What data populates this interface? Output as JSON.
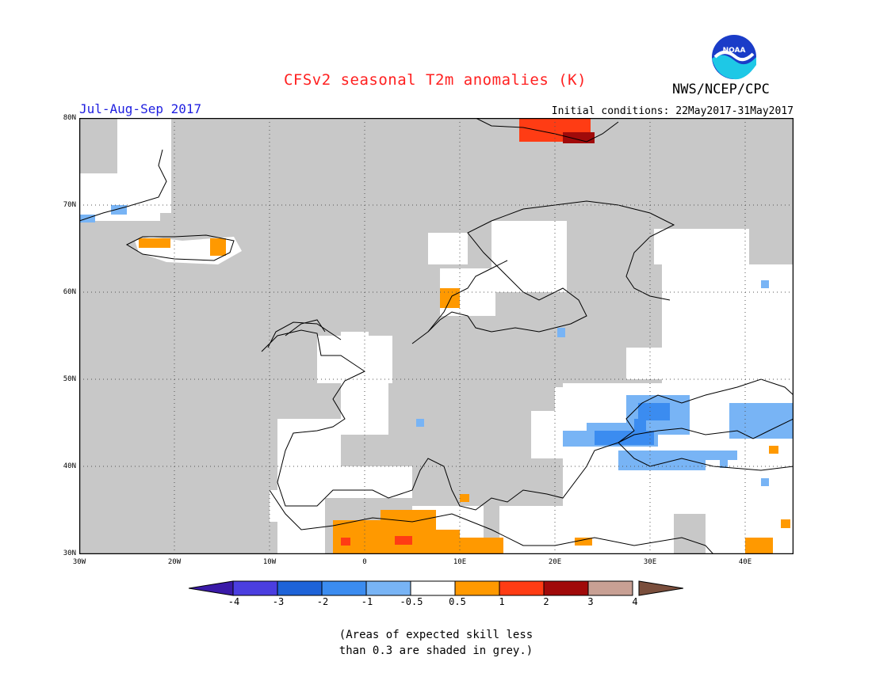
{
  "title": "CFSv2 seasonal T2m anomalies (K)",
  "agency": "NWS/NCEP/CPC",
  "logo_text": "NOAA",
  "season": "Jul-Aug-Sep 2017",
  "initial_conditions": "Initial conditions: 22May2017-31May2017",
  "map": {
    "lon_range": [
      -30,
      45
    ],
    "lat_range": [
      30,
      80
    ],
    "y_ticks": [
      "80N",
      "70N",
      "60N",
      "50N",
      "40N",
      "30N"
    ],
    "x_ticks": [
      "30W",
      "20W",
      "10W",
      "0",
      "10E",
      "20E",
      "30E",
      "40E"
    ],
    "grid": true
  },
  "colorbar": {
    "labels": [
      "-4",
      "-3",
      "-2",
      "-1",
      "-0.5",
      "0.5",
      "1",
      "2",
      "3",
      "4"
    ],
    "colors": [
      "#3a1aa8",
      "#4b3ee0",
      "#1e63d8",
      "#3b8cf0",
      "#78b4f5",
      "#ffffff",
      "#ff9900",
      "#ff3c14",
      "#a00a0a",
      "#c8a094",
      "#7a4e3c"
    ]
  },
  "note": [
    "(Areas of expected skill less",
    "than 0.3 are shaded in grey.)"
  ]
}
